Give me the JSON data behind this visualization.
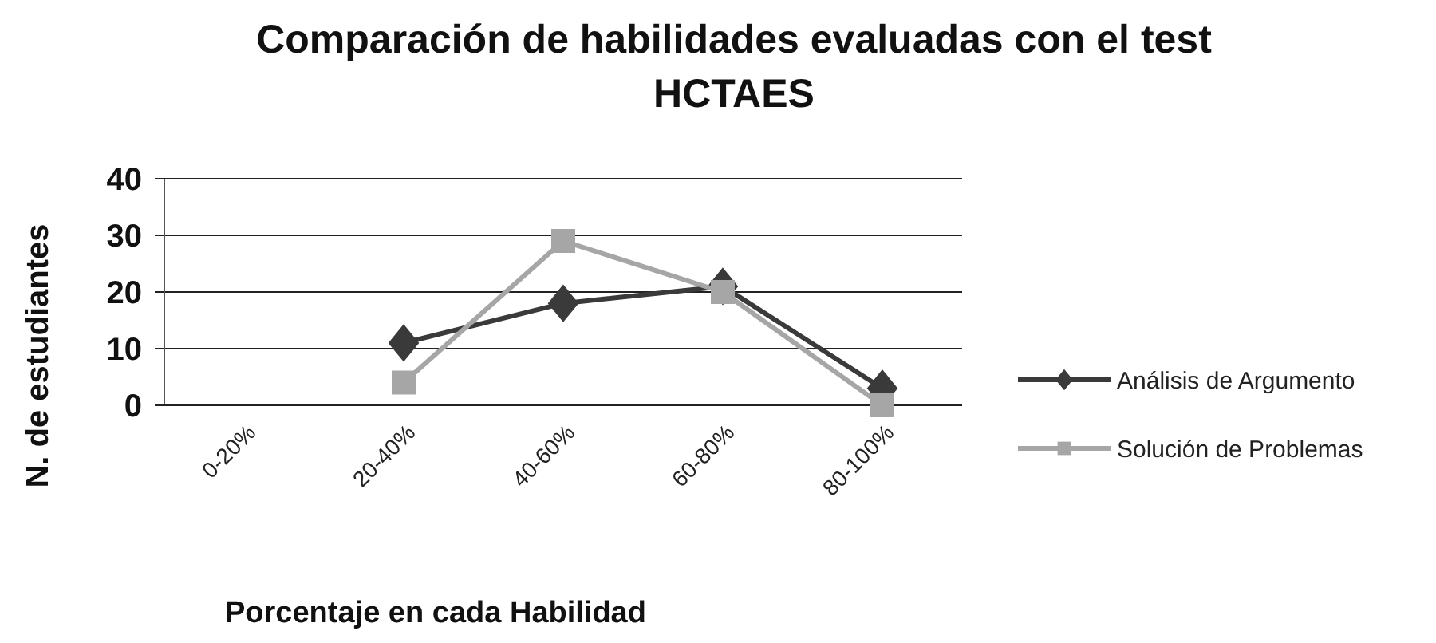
{
  "chart_data": {
    "type": "line",
    "title": "Comparación de habilidades evaluadas con el test HCTAES",
    "xlabel": "Porcentaje en cada Habilidad",
    "ylabel": "N. de estudiantes",
    "categories": [
      "0-20%",
      "20-40%",
      "40-60%",
      "60-80%",
      "80-100%"
    ],
    "series": [
      {
        "name": "Análisis de Argumento",
        "color": "#3a3a3a",
        "marker": "diamond",
        "values": [
          null,
          11,
          18,
          21,
          3
        ]
      },
      {
        "name": "Solución de Problemas",
        "color": "#a6a6a6",
        "marker": "square",
        "values": [
          null,
          4,
          29,
          20,
          0
        ]
      }
    ],
    "ylim": [
      0,
      40
    ],
    "yticks": [
      0,
      10,
      20,
      30,
      40
    ],
    "grid": "y",
    "legend": "right"
  }
}
